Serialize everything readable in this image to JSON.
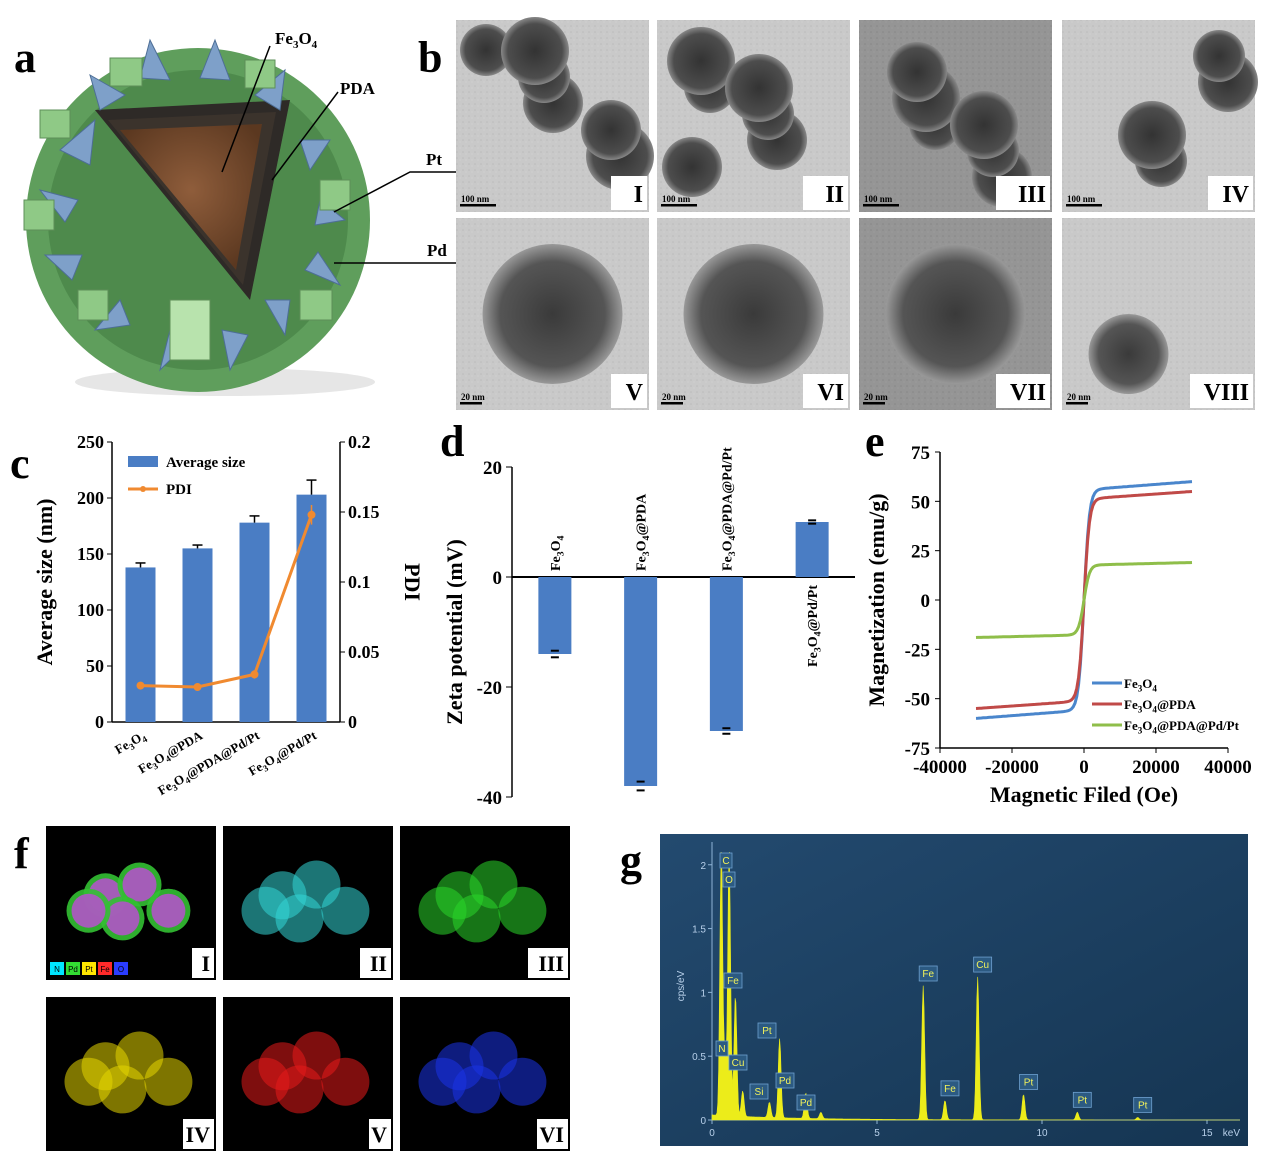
{
  "panel_letters": {
    "a": "a",
    "b": "b",
    "c": "c",
    "d": "d",
    "e": "e",
    "f": "f",
    "g": "g"
  },
  "panel_a": {
    "labels": [
      {
        "key": "fe3o4",
        "main": "Fe",
        "sub": "3",
        "main2": "O",
        "sub2": "4"
      },
      {
        "key": "pda",
        "text": "PDA"
      },
      {
        "key": "pt",
        "text": "Pt"
      },
      {
        "key": "pd",
        "text": "Pd"
      }
    ]
  },
  "panel_b": {
    "images": [
      {
        "roman": "I",
        "scale": "100 nm"
      },
      {
        "roman": "II",
        "scale": "100 nm"
      },
      {
        "roman": "III",
        "scale": "100 nm"
      },
      {
        "roman": "IV",
        "scale": "100 nm"
      },
      {
        "roman": "V",
        "scale": "20 nm"
      },
      {
        "roman": "VI",
        "scale": "20 nm"
      },
      {
        "roman": "VII",
        "scale": "20 nm"
      },
      {
        "roman": "VIII",
        "scale": "20 nm"
      }
    ]
  },
  "panel_f": {
    "images": [
      "I",
      "II",
      "III",
      "IV",
      "V",
      "VI"
    ],
    "legend": [
      "N",
      "Pd",
      "Pt",
      "Fe",
      "O"
    ],
    "legend_colors": [
      "#00e5ff",
      "#33dd33",
      "#ffe600",
      "#ff2a2a",
      "#2a3cff"
    ],
    "map_colors": [
      "#33d6d6",
      "#29d629",
      "#e6d600",
      "#e61a1a",
      "#1a33e6"
    ]
  },
  "chart_data": [
    {
      "panel": "c",
      "type": "bar",
      "categories": [
        "Fe3O4",
        "Fe3O4@PDA",
        "Fe3O4@PDA@Pd/Pt",
        "Fe3O4@Pd/Pt"
      ],
      "series": [
        {
          "name": "Average size",
          "type": "bar",
          "axis": "left",
          "values": [
            138,
            155,
            178,
            203
          ],
          "errors": [
            4,
            3,
            6,
            13
          ],
          "color": "#4a7dc4"
        },
        {
          "name": "PDI",
          "type": "line",
          "axis": "right",
          "values": [
            0.026,
            0.025,
            0.034,
            0.148
          ],
          "errors": [
            0.002,
            0.002,
            0.003,
            0.007
          ],
          "color": "#f08a30"
        }
      ],
      "ylabel": "Average size (nm)",
      "y2label": "PDI",
      "ylim": [
        0,
        250
      ],
      "yticks": [
        0,
        50,
        100,
        150,
        200,
        250
      ],
      "y2lim": [
        0,
        0.2
      ],
      "y2ticks": [
        "0",
        "0.05",
        "0.1",
        "0.15",
        "0.2"
      ],
      "legend_placement": "top-left"
    },
    {
      "panel": "d",
      "type": "bar",
      "categories": [
        "Fe3O4",
        "Fe3O4@PDA",
        "Fe3O4@PDA@Pd/Pt",
        "Fe3O4@Pd/Pt"
      ],
      "values": [
        -14,
        -38,
        -28,
        10
      ],
      "errors": [
        0.6,
        0.8,
        0.5,
        0.3
      ],
      "ylabel": "Zeta potential (mV)",
      "ylim": [
        -40,
        20
      ],
      "yticks": [
        -40,
        -20,
        0,
        20
      ],
      "color": "#4a7dc4"
    },
    {
      "panel": "e",
      "type": "line",
      "xlabel": "Magnetic Filed (Oe)",
      "ylabel": "Magnetization (emu/g)",
      "xlim": [
        -40000,
        40000
      ],
      "xticks": [
        -40000,
        -20000,
        0,
        20000,
        40000
      ],
      "ylim": [
        -75,
        75
      ],
      "yticks": [
        -75,
        -50,
        -25,
        0,
        25,
        50,
        75
      ],
      "legend_placement": "bottom-right",
      "series": [
        {
          "name": "Fe3O4",
          "ms": 60,
          "color": "#4a86cc"
        },
        {
          "name": "Fe3O4@PDA",
          "ms": 55,
          "color": "#c04a48"
        },
        {
          "name": "Fe3O4@PDA@Pd/Pt",
          "ms": 19,
          "color": "#8fbe4a"
        }
      ],
      "x_range": [
        -30000,
        30000
      ]
    },
    {
      "panel": "g",
      "type": "line",
      "xlabel": "keV",
      "ylabel": "cps/eV",
      "xlim": [
        0,
        16
      ],
      "xticks": [
        "0",
        "5",
        "10",
        "15"
      ],
      "ylim": [
        0,
        2.1
      ],
      "yticks": [
        "0",
        "0.5",
        "1",
        "1.5",
        "2"
      ],
      "peaks": [
        {
          "label": "C",
          "kev": 0.28,
          "height": 2.1
        },
        {
          "label": "O",
          "kev": 0.52,
          "height": 2.1
        },
        {
          "label": "N",
          "kev": 0.39,
          "height": 0.4
        },
        {
          "label": "Fe",
          "kev": 0.71,
          "height": 0.95
        },
        {
          "label": "Cu",
          "kev": 0.93,
          "height": 0.2
        },
        {
          "label": "Si",
          "kev": 1.74,
          "height": 0.12
        },
        {
          "label": "Pt",
          "kev": 2.05,
          "height": 0.62
        },
        {
          "label": "Pd",
          "kev": 2.84,
          "height": 0.2
        },
        {
          "label": "Pd",
          "kev": 3.3,
          "height": 0.05
        },
        {
          "label": "Fe",
          "kev": 6.4,
          "height": 1.05
        },
        {
          "label": "Fe",
          "kev": 7.06,
          "height": 0.15
        },
        {
          "label": "Cu",
          "kev": 8.05,
          "height": 1.12
        },
        {
          "label": "Pt",
          "kev": 9.44,
          "height": 0.2
        },
        {
          "label": "Pt",
          "kev": 11.07,
          "height": 0.06
        },
        {
          "label": "Pt",
          "kev": 12.9,
          "height": 0.02
        }
      ]
    }
  ]
}
